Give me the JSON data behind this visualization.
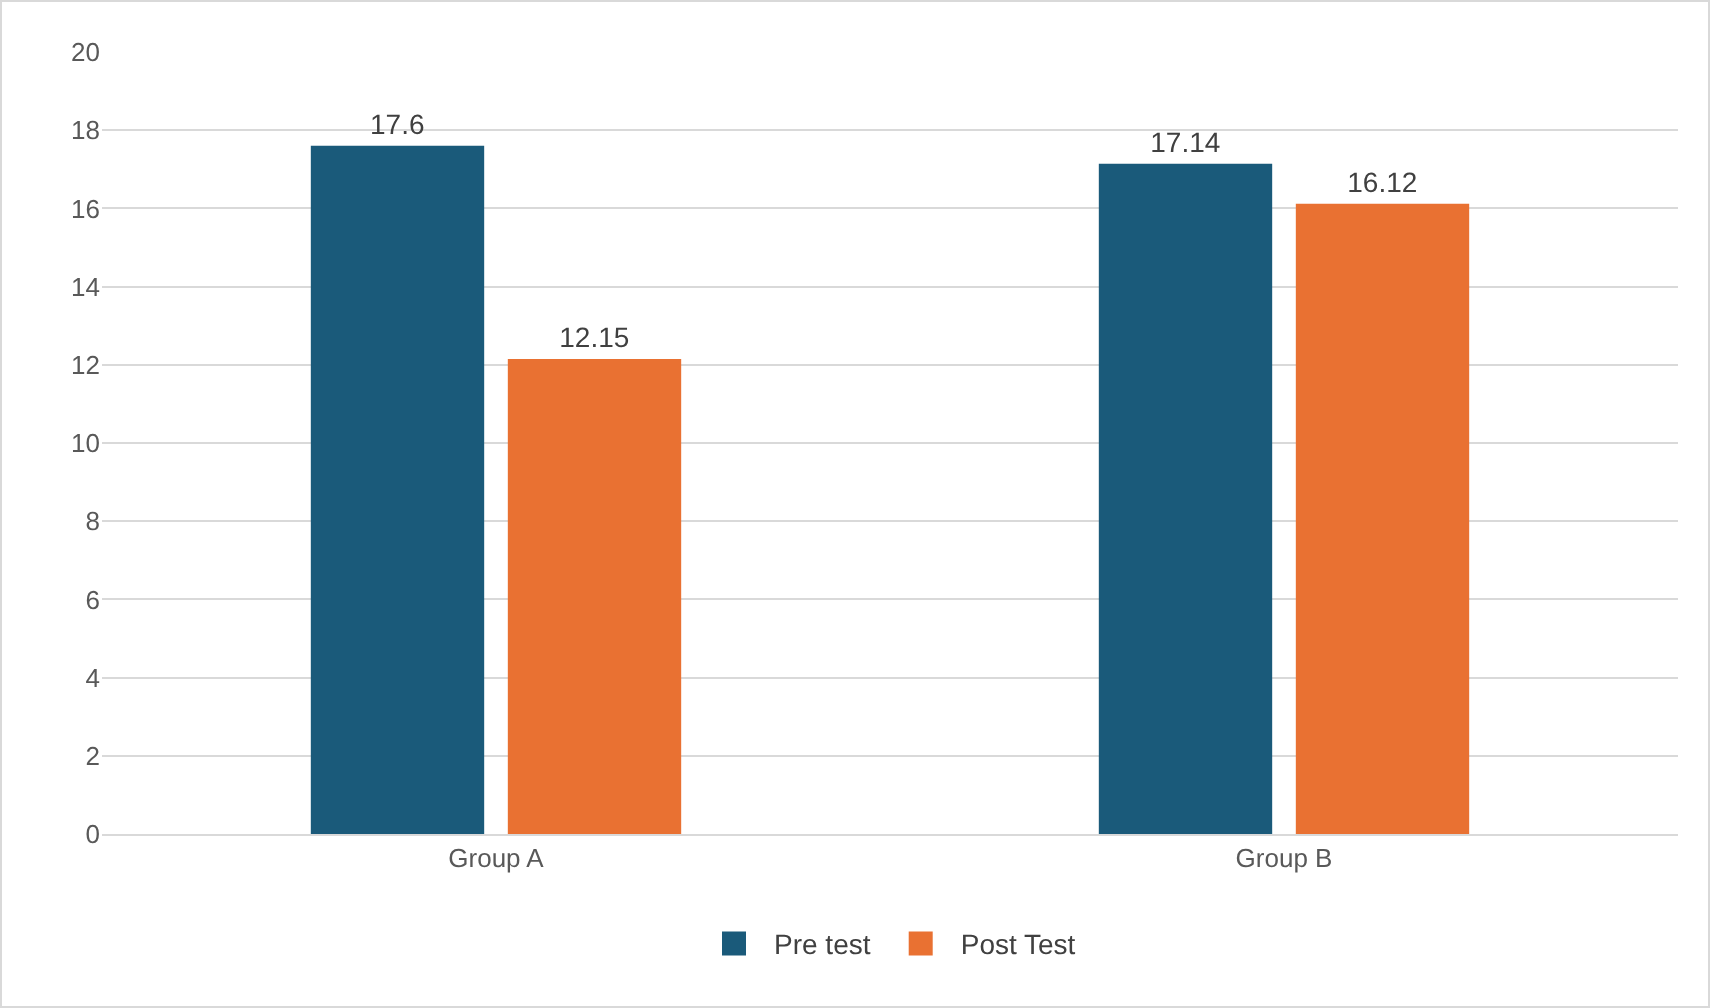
{
  "chart_data": {
    "type": "bar",
    "categories": [
      "Group A",
      "Group B"
    ],
    "series": [
      {
        "name": "Pre test",
        "color": "#1a5a7a",
        "values": [
          17.6,
          17.14
        ]
      },
      {
        "name": "Post Test",
        "color": "#e97132",
        "values": [
          12.15,
          16.12
        ]
      }
    ],
    "ylim": [
      0,
      20
    ],
    "yticks": [
      0,
      2,
      4,
      6,
      8,
      10,
      12,
      14,
      16,
      18,
      20
    ],
    "grid": "y",
    "legend": "bottom",
    "data_labels": true
  }
}
